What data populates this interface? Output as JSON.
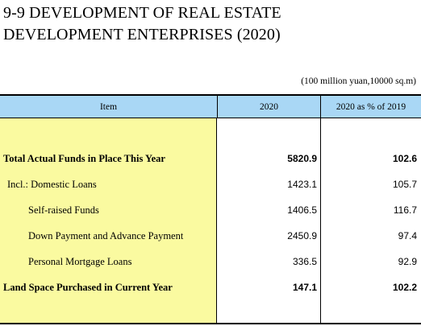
{
  "title": {
    "line1": "9-9  DEVELOPMENT OF REAL ESTATE",
    "line2": "DEVELOPMENT ENTERPRISES (2020)"
  },
  "unit": "(100 million yuan,10000 sq.m)",
  "table": {
    "headers": [
      "Item",
      "2020",
      "2020 as % of 2019"
    ],
    "rows": [
      {
        "label": "Total Actual Funds in Place This Year",
        "v2020": "5820.9",
        "pct": "102.6"
      },
      {
        "label": "Incl.: Domestic Loans",
        "v2020": "1423.1",
        "pct": "105.7"
      },
      {
        "label": "Self-raised Funds",
        "v2020": "1406.5",
        "pct": "116.7"
      },
      {
        "label": "Down Payment and Advance Payment",
        "v2020": "2450.9",
        "pct": "97.4"
      },
      {
        "label": "Personal Mortgage Loans",
        "v2020": "336.5",
        "pct": "92.9"
      },
      {
        "label": "Land Space Purchased in Current Year",
        "v2020": "147.1",
        "pct": "102.2"
      }
    ]
  },
  "colors": {
    "header_bg": "#a9d7f5",
    "item_column_bg": "#fafaa0"
  }
}
